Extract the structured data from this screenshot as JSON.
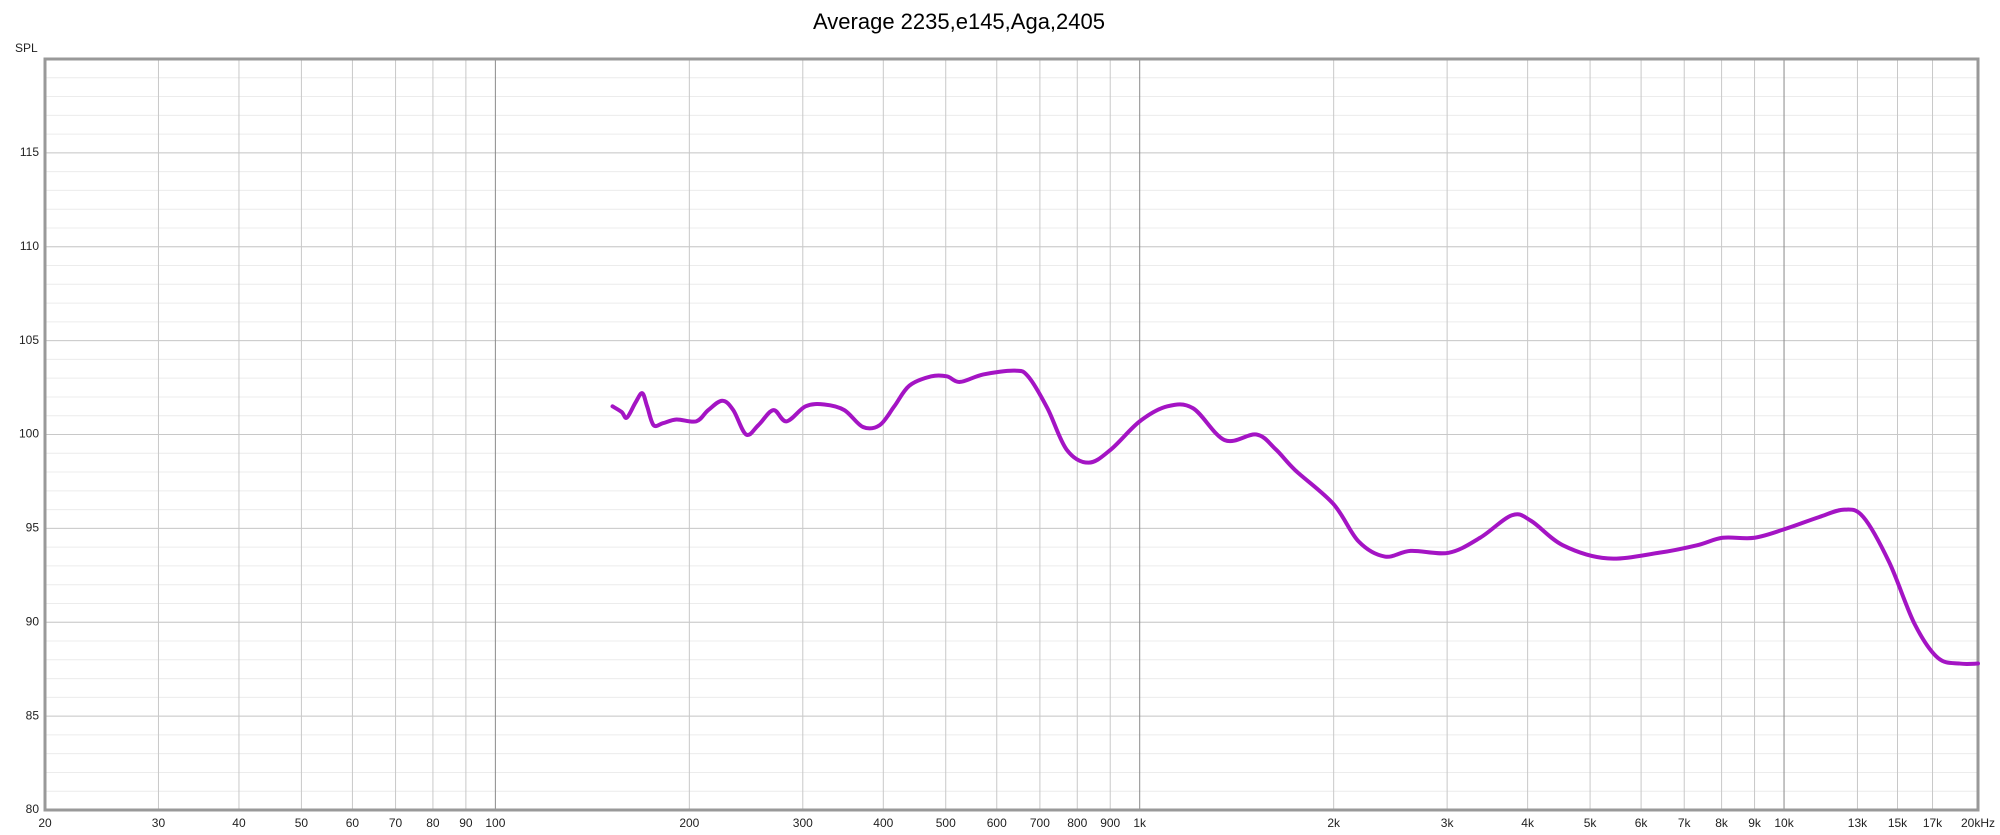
{
  "chart_data": {
    "type": "line",
    "title": "Average 2235,e145,Aga,2405",
    "y_label": "SPL",
    "log_x": true,
    "grid": true,
    "xlim": [
      20,
      20000
    ],
    "ylim": [
      80,
      120
    ],
    "xticks": [
      20,
      30,
      40,
      50,
      60,
      70,
      80,
      90,
      100,
      200,
      300,
      400,
      500,
      600,
      700,
      800,
      900,
      {
        "value": 1000,
        "label": "1k"
      },
      {
        "value": 2000,
        "label": "2k"
      },
      {
        "value": 3000,
        "label": "3k"
      },
      {
        "value": 4000,
        "label": "4k"
      },
      {
        "value": 5000,
        "label": "5k"
      },
      {
        "value": 6000,
        "label": "6k"
      },
      {
        "value": 7000,
        "label": "7k"
      },
      {
        "value": 8000,
        "label": "8k"
      },
      {
        "value": 9000,
        "label": "9k"
      },
      {
        "value": 10000,
        "label": "10k"
      },
      {
        "value": 13000,
        "label": "13k"
      },
      {
        "value": 15000,
        "label": "15k"
      },
      {
        "value": 17000,
        "label": "17k"
      },
      {
        "value": 20000,
        "label": "20kHz"
      }
    ],
    "yticks": [
      80,
      85,
      90,
      95,
      100,
      105,
      110,
      115
    ],
    "x": [
      152,
      157,
      160,
      165,
      169,
      172,
      176,
      182,
      191,
      205,
      214,
      225,
      234,
      245,
      256,
      270,
      283,
      303,
      324,
      348,
      372,
      395,
      416,
      439,
      475,
      502,
      526,
      572,
      640,
      671,
      719,
      770,
      833,
      902,
      1000,
      1104,
      1210,
      1355,
      1518,
      1627,
      1743,
      1998,
      2187,
      2401,
      2633,
      3015,
      3375,
      3782,
      4050,
      4538,
      5325,
      6393,
      7325,
      8030,
      9000,
      10100,
      11330,
      12410,
      13280,
      14560,
      15950,
      17330,
      18740,
      20000
    ],
    "series": [
      {
        "name": "Average 2235,e145,Aga,2405",
        "color": "#a414c4",
        "values": [
          101.5,
          101.2,
          100.9,
          101.7,
          102.2,
          101.5,
          100.5,
          100.6,
          100.8,
          100.7,
          101.3,
          101.8,
          101.3,
          100.0,
          100.5,
          101.3,
          100.7,
          101.5,
          101.6,
          101.3,
          100.4,
          100.5,
          101.5,
          102.6,
          103.1,
          103.1,
          102.8,
          103.2,
          103.4,
          103.1,
          101.4,
          99.2,
          98.5,
          99.2,
          100.7,
          101.5,
          101.4,
          99.7,
          100.0,
          99.2,
          98.1,
          96.3,
          94.3,
          93.5,
          93.8,
          93.7,
          94.5,
          95.7,
          95.4,
          94.1,
          93.4,
          93.7,
          94.1,
          94.5,
          94.5,
          95.0,
          95.6,
          96.0,
          95.6,
          93.2,
          89.9,
          88.1,
          87.8,
          87.8
        ]
      }
    ]
  }
}
